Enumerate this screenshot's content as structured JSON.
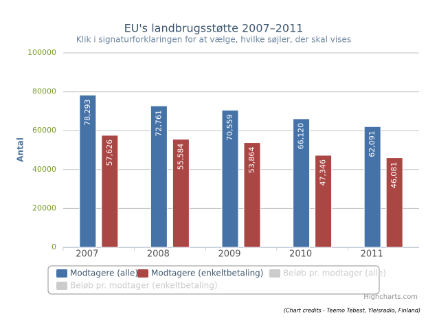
{
  "chart_data": {
    "type": "bar",
    "title": "EU's landbrugsstøtte 2007–2011",
    "subtitle": "Klik i signaturforklaringen for at vælge, hvilke søjler, der skal vises",
    "y_label": "Antal",
    "categories": [
      "2007",
      "2008",
      "2009",
      "2010",
      "2011"
    ],
    "series": [
      {
        "name": "Modtagere (alle)",
        "color": "#4572a7",
        "visible": true,
        "values": [
          78293,
          72761,
          70559,
          66120,
          62091
        ],
        "value_labels": [
          "78,293",
          "72,761",
          "70,559",
          "66,120",
          "62,091"
        ]
      },
      {
        "name": "Modtagere (enkeltbetaling)",
        "color": "#aa4643",
        "visible": true,
        "values": [
          57626,
          55584,
          53864,
          47346,
          46081
        ],
        "value_labels": [
          "57,626",
          "55,584",
          "53,864",
          "47,346",
          "46,081"
        ]
      },
      {
        "name": "Beløb pr. modtager (alle)",
        "visible": false
      },
      {
        "name": "Beløb pr. modtager (enkeltbetaling)",
        "visible": false
      }
    ],
    "ylim": [
      0,
      100000
    ],
    "yticks": [
      0,
      20000,
      40000,
      60000,
      80000,
      100000
    ],
    "grid": true,
    "legend": "bottom",
    "credits": "Highcharts.com",
    "note": "(Chart credits - Teemo Tebest, Yleisradio, Finland)"
  }
}
